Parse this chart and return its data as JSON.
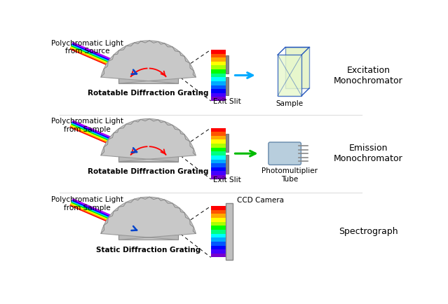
{
  "bg_color": "#ffffff",
  "sections": [
    {
      "label": "Excitation\nMonochromator",
      "light_label": "Polychromatic Light\nfrom Source",
      "grating_label": "Rotatable Diffraction Grating",
      "output_label": "Exit Slit",
      "device_label": "Sample",
      "output_arrow_color": "#00aaff",
      "rotatable": true,
      "has_sample": true,
      "has_pmt": false,
      "has_ccd": false
    },
    {
      "label": "Emission\nMonochromator",
      "light_label": "Polychromatic Light\nfrom Sample",
      "grating_label": "Rotatable Diffraction Grating",
      "output_label": "Exit Slit",
      "device_label": "Photomultiplier\nTube",
      "output_arrow_color": "#00bb00",
      "rotatable": true,
      "has_sample": false,
      "has_pmt": true,
      "has_ccd": false
    },
    {
      "label": "Spectrograph",
      "light_label": "Polychromatic Light\nfrom Sample",
      "grating_label": "Static Diffraction Grating",
      "output_label": "CCD Camera",
      "device_label": "",
      "output_arrow_color": null,
      "rotatable": false,
      "has_sample": false,
      "has_pmt": false,
      "has_ccd": true
    }
  ],
  "spectrum_colors": [
    "#7700cc",
    "#4400ff",
    "#0000ff",
    "#0055ff",
    "#00aaff",
    "#00ffff",
    "#00ff80",
    "#00ff00",
    "#aaff00",
    "#ffff00",
    "#ffaa00",
    "#ff5500",
    "#ff0000"
  ],
  "beam_colors": [
    "#ff0000",
    "#ffaa00",
    "#ffff00",
    "#00ee00",
    "#00ccff",
    "#0000ff",
    "#aa00ff"
  ],
  "separator_color": "#dddddd"
}
